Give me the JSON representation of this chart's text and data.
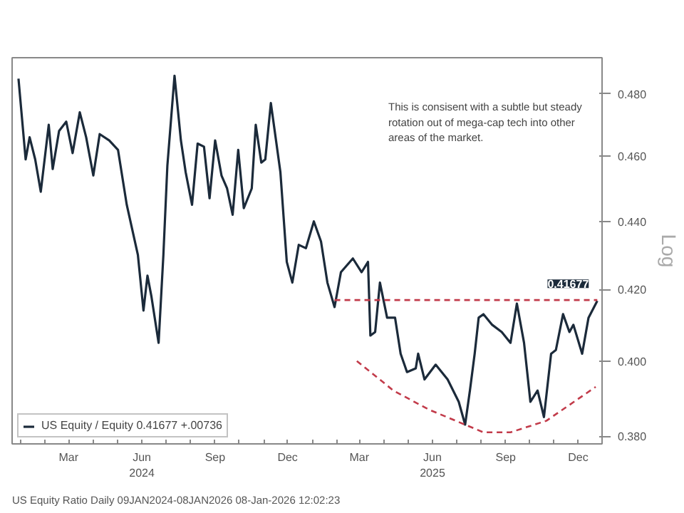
{
  "chart_data": {
    "type": "line",
    "ylabel": "Log",
    "log": true,
    "grid": false,
    "legend": "bottom left",
    "line_style": "solid",
    "xlim": [
      "2024-01-04",
      "2026-01-14"
    ],
    "ylim": [
      0.378,
      0.492
    ],
    "yticks": [
      {
        "value": 0.38,
        "label": "0.380"
      },
      {
        "value": 0.4,
        "label": "0.400"
      },
      {
        "value": 0.42,
        "label": "0.420"
      },
      {
        "value": 0.44,
        "label": "0.440"
      },
      {
        "value": 0.46,
        "label": "0.460"
      },
      {
        "value": 0.48,
        "label": "0.480"
      }
    ],
    "xticks": [
      {
        "value": "2024-01-15",
        "label": null
      },
      {
        "value": "2024-02-15",
        "label": null
      },
      {
        "value": "2024-03-15",
        "label": "Mar"
      },
      {
        "value": "2024-04-15",
        "label": null
      },
      {
        "value": "2024-05-15",
        "label": null
      },
      {
        "value": "2024-06-15",
        "label": "Jun\n2024"
      },
      {
        "value": "2024-07-15",
        "label": null
      },
      {
        "value": "2024-08-15",
        "label": null
      },
      {
        "value": "2024-09-15",
        "label": "Sep"
      },
      {
        "value": "2024-10-15",
        "label": null
      },
      {
        "value": "2024-11-15",
        "label": null
      },
      {
        "value": "2024-12-15",
        "label": "Dec"
      },
      {
        "value": "2025-01-15",
        "label": null
      },
      {
        "value": "2025-02-15",
        "label": null
      },
      {
        "value": "2025-03-15",
        "label": "Mar"
      },
      {
        "value": "2025-04-15",
        "label": null
      },
      {
        "value": "2025-05-15",
        "label": null
      },
      {
        "value": "2025-06-15",
        "label": "Jun\n2025"
      },
      {
        "value": "2025-07-15",
        "label": null
      },
      {
        "value": "2025-08-15",
        "label": null
      },
      {
        "value": "2025-09-15",
        "label": "Sep"
      },
      {
        "value": "2025-10-15",
        "label": null
      },
      {
        "value": "2025-11-15",
        "label": null
      },
      {
        "value": "2025-12-15",
        "label": "Dec"
      }
    ],
    "annotations": [
      "This is consisent with a subtle but steady rotation out of mega-cap tech into other areas of the market.",
      "US Equity Ratio Daily 09JAN2024-08JAN2026",
      "08-Jan-2026 12:02:23",
      {
        "text": "0.41677",
        "x": "2026-01-08",
        "y": 0.41677
      }
    ],
    "series": [
      {
        "name": "US Equity / Equity 0.41677 +.00736",
        "color": "#1b2a3a",
        "x": [
          "2024-01-12",
          "2024-01-21",
          "2024-01-26",
          "2024-02-02",
          "2024-02-09",
          "2024-02-19",
          "2024-02-24",
          "2024-03-03",
          "2024-03-12",
          "2024-03-20",
          "2024-03-29",
          "2024-04-06",
          "2024-04-15",
          "2024-04-23",
          "2024-05-05",
          "2024-05-16",
          "2024-05-27",
          "2024-06-10",
          "2024-06-17",
          "2024-06-22",
          "2024-06-27",
          "2024-07-06",
          "2024-07-12",
          "2024-07-17",
          "2024-07-26",
          "2024-08-03",
          "2024-08-09",
          "2024-08-17",
          "2024-08-24",
          "2024-09-01",
          "2024-09-08",
          "2024-09-15",
          "2024-09-23",
          "2024-09-30",
          "2024-10-07",
          "2024-10-14",
          "2024-10-21",
          "2024-10-31",
          "2024-11-05",
          "2024-11-12",
          "2024-11-17",
          "2024-11-24",
          "2024-12-06",
          "2024-12-14",
          "2024-12-21",
          "2024-12-29",
          "2025-01-07",
          "2025-01-17",
          "2025-01-26",
          "2025-02-03",
          "2025-02-12",
          "2025-02-20",
          "2025-03-07",
          "2025-03-18",
          "2025-03-26",
          "2025-03-29",
          "2025-04-04",
          "2025-04-10",
          "2025-04-19",
          "2025-04-29",
          "2025-05-06",
          "2025-05-14",
          "2025-05-25",
          "2025-05-28",
          "2025-06-05",
          "2025-06-19",
          "2025-07-04",
          "2025-07-18",
          "2025-07-26",
          "2025-08-01",
          "2025-08-07",
          "2025-08-12",
          "2025-08-18",
          "2025-08-29",
          "2025-09-10",
          "2025-09-21",
          "2025-09-29",
          "2025-10-08",
          "2025-10-16",
          "2025-10-25",
          "2025-11-02",
          "2025-11-11",
          "2025-11-17",
          "2025-11-26",
          "2025-12-04",
          "2025-12-09",
          "2025-12-20",
          "2025-12-28",
          "2026-01-08"
        ],
        "values": [
          0.485,
          0.459,
          0.466,
          0.459,
          0.449,
          0.47,
          0.456,
          0.468,
          0.471,
          0.461,
          0.474,
          0.466,
          0.454,
          0.467,
          0.465,
          0.462,
          0.445,
          0.43,
          0.414,
          0.424,
          0.418,
          0.405,
          0.43,
          0.457,
          0.486,
          0.465,
          0.455,
          0.445,
          0.464,
          0.463,
          0.447,
          0.465,
          0.454,
          0.45,
          0.442,
          0.462,
          0.444,
          0.45,
          0.47,
          0.458,
          0.459,
          0.477,
          0.455,
          0.428,
          0.422,
          0.433,
          0.432,
          0.44,
          0.434,
          0.422,
          0.415,
          0.425,
          0.429,
          0.425,
          0.428,
          0.407,
          0.408,
          0.422,
          0.412,
          0.412,
          0.402,
          0.397,
          0.398,
          0.402,
          0.395,
          0.399,
          0.395,
          0.389,
          0.383,
          0.392,
          0.402,
          0.412,
          0.413,
          0.41,
          0.408,
          0.405,
          0.416,
          0.405,
          0.389,
          0.392,
          0.385,
          0.402,
          0.403,
          0.413,
          0.408,
          0.41,
          0.402,
          0.412,
          0.41677
        ]
      },
      {
        "color": "#c23b4a",
        "line_style": "dashed",
        "x": [
          "2025-02-12",
          "2026-01-08"
        ],
        "values": [
          0.417,
          0.417
        ]
      },
      {
        "color": "#c23b4a",
        "line_style": "dashed",
        "x": [
          "2025-03-12",
          "2025-04-27",
          "2025-06-10",
          "2025-08-18",
          "2025-09-21",
          "2025-11-05",
          "2026-01-06"
        ],
        "values": [
          0.4,
          0.392,
          0.387,
          0.381,
          0.381,
          0.384,
          0.393
        ]
      }
    ]
  }
}
